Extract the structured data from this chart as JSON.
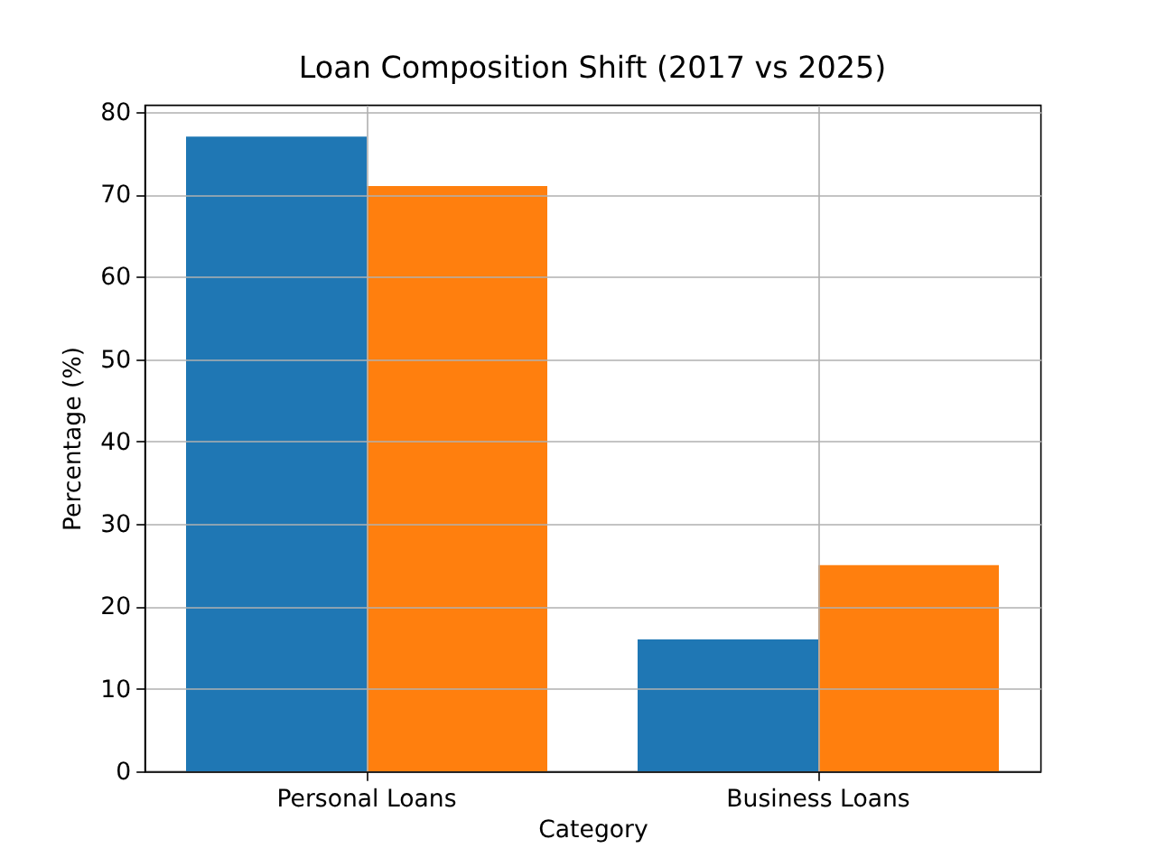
{
  "chart_data": {
    "type": "bar",
    "title": "Loan Composition Shift (2017 vs 2025)",
    "xlabel": "Category",
    "ylabel": "Percentage (%)",
    "categories": [
      "Personal Loans",
      "Business Loans"
    ],
    "series": [
      {
        "color": "#1f77b4",
        "values": [
          77,
          16
        ]
      },
      {
        "color": "#ff7f0e",
        "values": [
          71,
          25
        ]
      }
    ],
    "ylim": [
      0,
      80.85
    ],
    "yticks": [
      0,
      10,
      20,
      30,
      40,
      50,
      60,
      70,
      80
    ],
    "grid": true
  }
}
